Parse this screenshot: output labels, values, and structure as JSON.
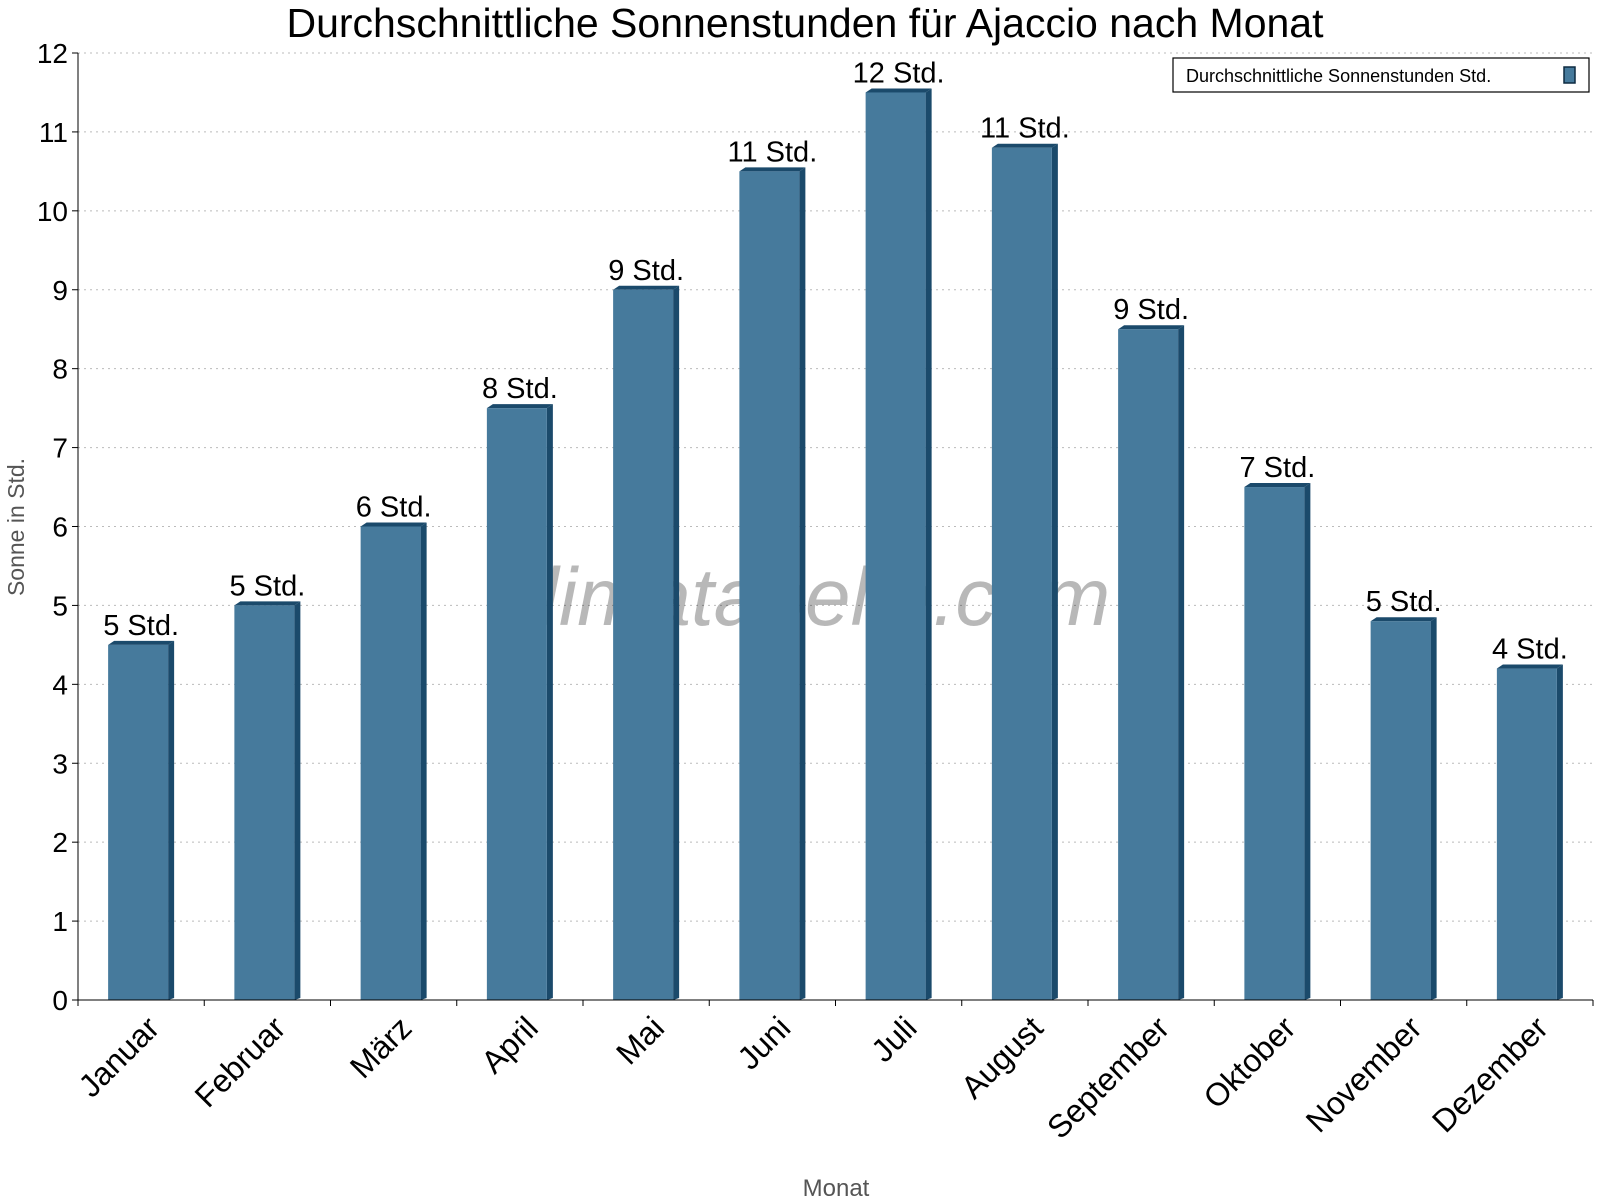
{
  "chart_data": {
    "type": "bar",
    "title": "Durchschnittliche Sonnenstunden für Ajaccio nach Monat",
    "xlabel": "Monat",
    "ylabel": "Sonne in Std.",
    "ylim": [
      0,
      12
    ],
    "yticks": [
      0,
      1,
      2,
      3,
      4,
      5,
      6,
      7,
      8,
      9,
      10,
      11,
      12
    ],
    "grid": true,
    "legend_position": "top-right",
    "categories": [
      "Januar",
      "Februar",
      "März",
      "April",
      "Mai",
      "Juni",
      "Juli",
      "August",
      "September",
      "Oktober",
      "November",
      "Dezember"
    ],
    "series": [
      {
        "name": "Durchschnittliche Sonnenstunden Std.",
        "color": "#467a9c",
        "values": [
          4.5,
          5.0,
          6.0,
          7.5,
          9.0,
          10.5,
          11.5,
          10.8,
          8.5,
          6.5,
          4.8,
          4.2
        ],
        "labels": [
          "5 Std.",
          "5 Std.",
          "6 Std.",
          "8 Std.",
          "9 Std.",
          "11 Std.",
          "12 Std.",
          "11 Std.",
          "9 Std.",
          "7 Std.",
          "5 Std.",
          "4 Std."
        ]
      }
    ],
    "watermark": "klimatabelle.com"
  }
}
